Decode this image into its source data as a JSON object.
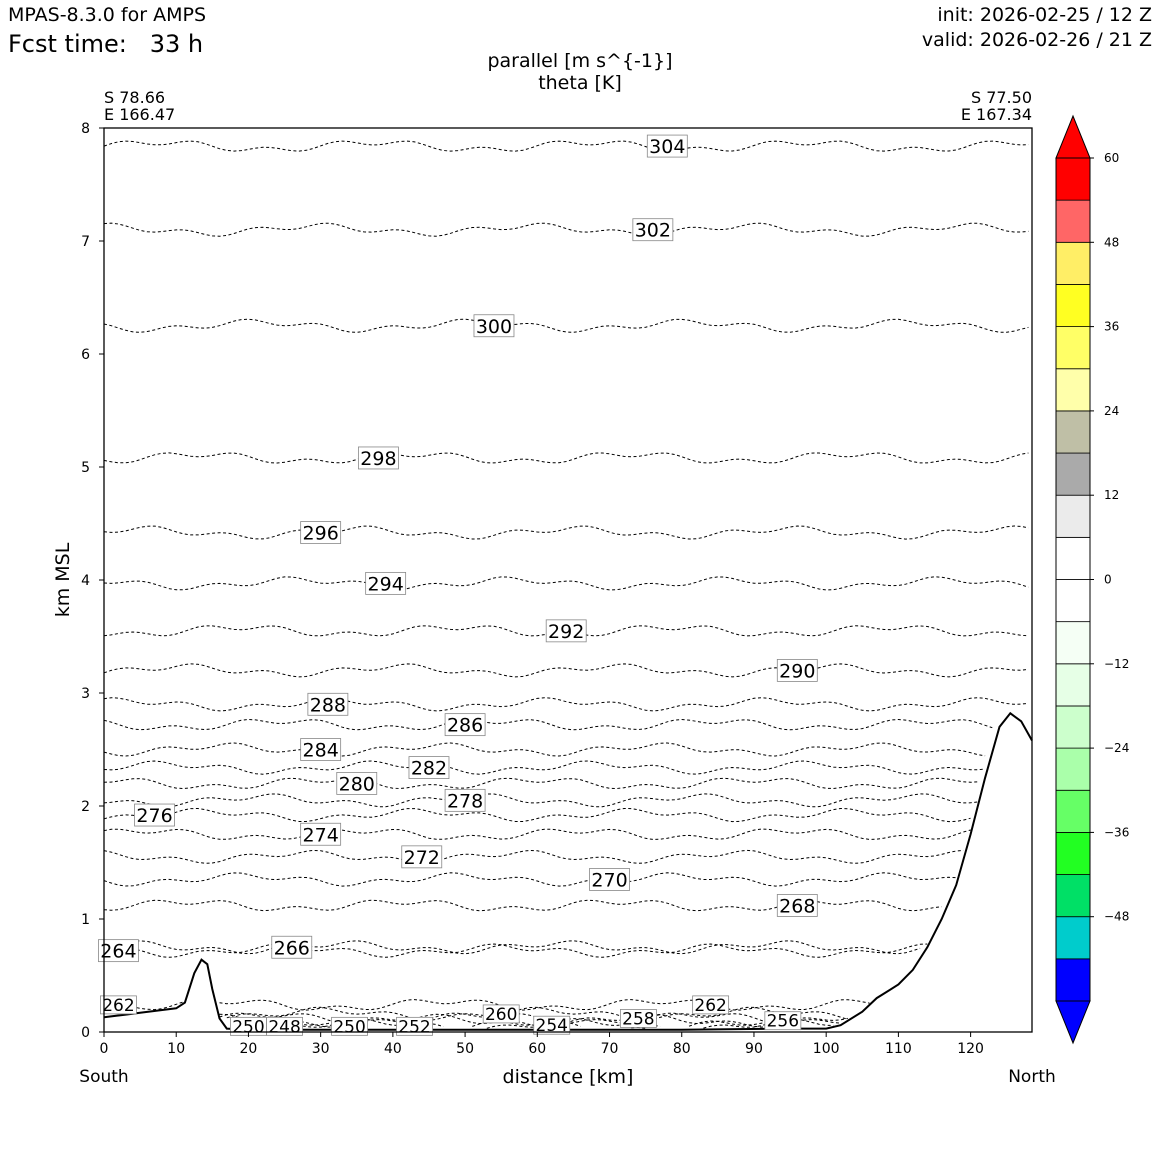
{
  "header": {
    "model": "MPAS-8.3.0 for AMPS",
    "fcst_label": "Fcst time:",
    "fcst_value": "33 h",
    "init": "init: 2026-02-25 / 12 Z",
    "valid": "valid: 2026-02-26 / 21 Z"
  },
  "endpoints": {
    "left_lat": "S 78.66",
    "left_lon": "E 166.47",
    "right_lat": "S 77.50",
    "right_lon": "E 167.34",
    "left_dir": "South",
    "right_dir": "North"
  },
  "chart_data": {
    "type": "contour",
    "title": "parallel [m s^{-1}]",
    "subtitle": "theta [K]",
    "xlabel": "distance [km]",
    "ylabel": "km MSL",
    "xlim": [
      0,
      128.5
    ],
    "ylim": [
      0,
      8
    ],
    "xticks": [
      0,
      10,
      20,
      30,
      40,
      50,
      60,
      70,
      80,
      90,
      100,
      110,
      120
    ],
    "yticks": [
      0,
      1,
      2,
      3,
      4,
      5,
      6,
      7,
      8
    ],
    "terrain": [
      [
        0,
        0.13
      ],
      [
        5,
        0.17
      ],
      [
        10,
        0.21
      ],
      [
        11.2,
        0.26
      ],
      [
        12.5,
        0.52
      ],
      [
        13.5,
        0.64
      ],
      [
        14.3,
        0.6
      ],
      [
        15,
        0.38
      ],
      [
        16,
        0.12
      ],
      [
        17,
        0.03
      ],
      [
        20,
        0.02
      ],
      [
        40,
        0.02
      ],
      [
        60,
        0.02
      ],
      [
        80,
        0.02
      ],
      [
        95,
        0.03
      ],
      [
        100,
        0.03
      ],
      [
        102,
        0.06
      ],
      [
        105,
        0.18
      ],
      [
        107,
        0.3
      ],
      [
        110,
        0.42
      ],
      [
        112,
        0.55
      ],
      [
        114,
        0.75
      ],
      [
        116,
        1.0
      ],
      [
        118,
        1.3
      ],
      [
        120,
        1.75
      ],
      [
        122,
        2.25
      ],
      [
        124,
        2.7
      ],
      [
        125.5,
        2.82
      ],
      [
        127,
        2.75
      ],
      [
        128.5,
        2.58
      ]
    ],
    "theta_contours": [
      {
        "label": "304",
        "level": 7.84,
        "label_x": 78
      },
      {
        "label": "302",
        "level": 7.1,
        "label_x": 76
      },
      {
        "label": "300",
        "level": 6.25,
        "label_x": 54
      },
      {
        "label": "298",
        "level": 5.08,
        "label_x": 38
      },
      {
        "label": "296",
        "level": 4.42,
        "label_x": 30
      },
      {
        "label": "294",
        "level": 3.97,
        "label_x": 39
      },
      {
        "label": "292",
        "level": 3.55,
        "label_x": 64
      },
      {
        "label": "290",
        "level": 3.2,
        "label_x": 96
      },
      {
        "label": "288",
        "level": 2.9,
        "label_x": 31
      },
      {
        "label": "286",
        "level": 2.72,
        "label_x": 50
      },
      {
        "label": "284",
        "level": 2.5,
        "label_x": 30
      },
      {
        "label": "282",
        "level": 2.34,
        "label_x": 45
      },
      {
        "label": "280",
        "level": 2.2,
        "label_x": 35
      },
      {
        "label": "278",
        "level": 2.05,
        "label_x": 50
      },
      {
        "label": "276",
        "level": 1.92,
        "label_x": 7
      },
      {
        "label": "274",
        "level": 1.75,
        "label_x": 30
      },
      {
        "label": "272",
        "level": 1.55,
        "label_x": 44
      },
      {
        "label": "270",
        "level": 1.35,
        "label_x": 70
      },
      {
        "label": "268",
        "level": 1.12,
        "label_x": 96
      },
      {
        "label": "266",
        "level": 0.75,
        "label_x": 26
      },
      {
        "label": "264",
        "level": 0.72,
        "label_x": 2
      },
      {
        "label": "262",
        "level": 0.24,
        "label_x": 84
      },
      {
        "label": "262",
        "level": 0.24,
        "label_x": 2
      },
      {
        "label": "260",
        "level": 0.16,
        "label_x": 55
      },
      {
        "label": "258",
        "level": 0.12,
        "label_x": 74
      },
      {
        "label": "256",
        "level": 0.1,
        "label_x": 94
      },
      {
        "label": "254",
        "level": 0.06,
        "label_x": 62
      },
      {
        "label": "252",
        "level": 0.05,
        "label_x": 43
      },
      {
        "label": "250",
        "level": 0.05,
        "label_x": 34
      },
      {
        "label": "250",
        "level": 0.05,
        "label_x": 20
      },
      {
        "label": "248",
        "level": 0.05,
        "label_x": 25
      }
    ],
    "colorbar": {
      "ticks": [
        "60",
        "48",
        "36",
        "24",
        "12",
        "0",
        "−12",
        "−24",
        "−36",
        "−48"
      ],
      "levels": [
        -60,
        -54,
        -48,
        -42,
        -36,
        -30,
        -24,
        -18,
        -12,
        -6,
        0,
        6,
        12,
        18,
        24,
        30,
        36,
        42,
        48,
        54,
        60
      ],
      "colors": [
        "#0000ff",
        "#00cccc",
        "#00e066",
        "#22ff22",
        "#66ff66",
        "#aaffaa",
        "#ccffcc",
        "#e6ffe6",
        "#f5fff5",
        "#ffffff",
        "#ffffff",
        "#ebebeb",
        "#aaaaaa",
        "#bfbfa6",
        "#ffffaa",
        "#ffff66",
        "#ffff22",
        "#ffee66",
        "#ff6666",
        "#ff0000"
      ],
      "under_color": "#0000ff",
      "over_color": "#ff0000"
    }
  }
}
